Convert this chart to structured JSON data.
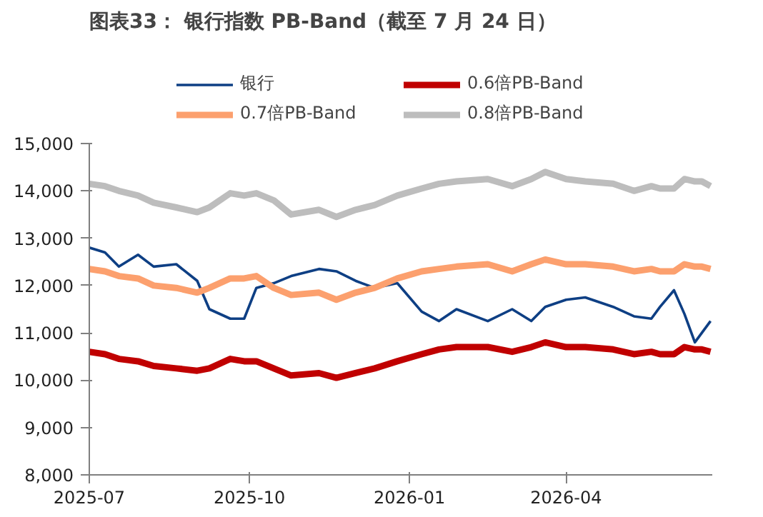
{
  "chart_data": {
    "type": "line",
    "title": "图表33： 银行指数 PB-Band（截至 7 月 24 日）",
    "x": [
      "2025-07-01",
      "2025-07-10",
      "2025-07-18",
      "2025-07-29",
      "2025-08-07",
      "2025-08-20",
      "2025-09-01",
      "2025-09-08",
      "2025-09-20",
      "2025-09-28",
      "2025-10-05",
      "2025-10-15",
      "2025-10-25",
      "2025-11-10",
      "2025-11-20",
      "2025-12-01",
      "2025-12-12",
      "2025-12-25",
      "2026-01-08",
      "2026-01-18",
      "2026-01-28",
      "2026-02-15",
      "2026-03-01",
      "2026-03-12",
      "2026-03-20",
      "2026-04-01",
      "2026-04-12",
      "2026-04-28",
      "2026-05-10",
      "2026-05-20",
      "2026-05-25",
      "2026-06-02",
      "2026-06-08",
      "2026-06-14",
      "2026-06-18",
      "2026-06-23"
    ],
    "series": [
      {
        "name": "银行",
        "color": "#0e3f84",
        "values": [
          12800,
          12700,
          12400,
          12650,
          12400,
          12450,
          12100,
          11500,
          11300,
          11300,
          11950,
          12050,
          12200,
          12350,
          12300,
          12100,
          11950,
          12050,
          11450,
          11250,
          11500,
          11250,
          11500,
          11250,
          11550,
          11700,
          11750,
          11550,
          11350,
          11300,
          11550,
          11900,
          11400,
          10800,
          11000,
          11250
        ]
      },
      {
        "name": "0.6倍PB-Band",
        "color": "#c00000",
        "values": [
          10600,
          10550,
          10450,
          10400,
          10300,
          10250,
          10200,
          10250,
          10450,
          10400,
          10400,
          10250,
          10100,
          10150,
          10050,
          10150,
          10250,
          10400,
          10550,
          10650,
          10700,
          10700,
          10600,
          10700,
          10800,
          10700,
          10700,
          10650,
          10550,
          10600,
          10550,
          10550,
          10700,
          10650,
          10650,
          10600
        ]
      },
      {
        "name": "0.7倍PB-Band",
        "color": "#fca06e",
        "values": [
          12350,
          12300,
          12200,
          12150,
          12000,
          11950,
          11850,
          11950,
          12150,
          12150,
          12200,
          11950,
          11800,
          11850,
          11700,
          11850,
          11950,
          12150,
          12300,
          12350,
          12400,
          12450,
          12300,
          12450,
          12550,
          12450,
          12450,
          12400,
          12300,
          12350,
          12300,
          12300,
          12450,
          12400,
          12400,
          12350
        ]
      },
      {
        "name": "0.8倍PB-Band",
        "color": "#bdbdbd",
        "values": [
          14150,
          14100,
          14000,
          13900,
          13750,
          13650,
          13550,
          13650,
          13950,
          13900,
          13950,
          13800,
          13500,
          13600,
          13450,
          13600,
          13700,
          13900,
          14050,
          14150,
          14200,
          14250,
          14100,
          14250,
          14400,
          14250,
          14200,
          14150,
          14000,
          14100,
          14050,
          14050,
          14250,
          14200,
          14200,
          14100
        ]
      }
    ],
    "xlim": [
      "2025-07-01",
      "2026-06-24"
    ],
    "xticks": [
      {
        "value": "2025-07-01",
        "label": "2025-07"
      },
      {
        "value": "2025-10-01",
        "label": "2025-10"
      },
      {
        "value": "2026-01-01",
        "label": "2026-01"
      },
      {
        "value": "2026-04-01",
        "label": "2026-04"
      }
    ],
    "ylim": [
      8000,
      15000
    ],
    "yticks": [
      {
        "value": 8000,
        "label": "8,000"
      },
      {
        "value": 9000,
        "label": "9,000"
      },
      {
        "value": 10000,
        "label": "10,000"
      },
      {
        "value": 11000,
        "label": "11,000"
      },
      {
        "value": 12000,
        "label": "12,000"
      },
      {
        "value": 13000,
        "label": "13,000"
      },
      {
        "value": 14000,
        "label": "14,000"
      },
      {
        "value": 15000,
        "label": "15,000"
      }
    ],
    "grid": false,
    "legend": "top",
    "line_style": "solid",
    "marker": "none"
  }
}
